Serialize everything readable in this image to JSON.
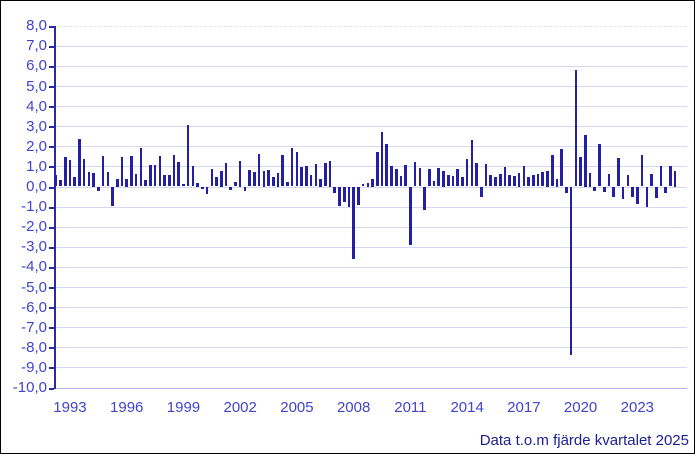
{
  "caption": "Data t.o.m fjärde kvartalet 2025",
  "colors": {
    "bar": "#2420a6",
    "axis": "#2a2aa8",
    "tick_label": "#4343cb",
    "gridline": "#d7d7f2",
    "caption": "#1d1d96",
    "background": "#ffffff"
  },
  "chart_data": {
    "type": "bar",
    "title": "",
    "xlabel": "",
    "ylabel": "",
    "x_start": "1993 Q1",
    "x_end": "2025 Q4",
    "frequency": "quarterly",
    "ylim": [
      -10,
      8
    ],
    "grid": true,
    "y_ticks": [
      {
        "value": 8,
        "label": "8,0"
      },
      {
        "value": 7,
        "label": "7,0"
      },
      {
        "value": 6,
        "label": "6,0"
      },
      {
        "value": 5,
        "label": "5,0"
      },
      {
        "value": 4,
        "label": "4,0"
      },
      {
        "value": 3,
        "label": "3,0"
      },
      {
        "value": 2,
        "label": "2,0"
      },
      {
        "value": 1,
        "label": "1,0"
      },
      {
        "value": 0,
        "label": "0,0"
      },
      {
        "value": -1,
        "label": "-1,0"
      },
      {
        "value": -2,
        "label": "-2,0"
      },
      {
        "value": -3,
        "label": "-3,0"
      },
      {
        "value": -4,
        "label": "-4,0"
      },
      {
        "value": -5,
        "label": "-5,0"
      },
      {
        "value": -6,
        "label": "-6,0"
      },
      {
        "value": -7,
        "label": "-7,0"
      },
      {
        "value": -8,
        "label": "-8,0"
      },
      {
        "value": -9,
        "label": "-9,0"
      },
      {
        "value": -10,
        "label": "-10,0"
      }
    ],
    "x_tick_years": [
      "1993",
      "1996",
      "1999",
      "2002",
      "2005",
      "2008",
      "2011",
      "2014",
      "2017",
      "2020",
      "2023"
    ],
    "values": [
      0.55,
      0.3,
      1.45,
      1.3,
      0.45,
      2.35,
      1.35,
      0.7,
      0.65,
      -0.2,
      1.5,
      0.7,
      -0.95,
      0.35,
      1.45,
      0.35,
      1.5,
      0.6,
      1.9,
      0.3,
      1.05,
      1.05,
      1.5,
      0.55,
      0.55,
      1.55,
      1.2,
      0.1,
      3.05,
      1.0,
      0.15,
      -0.1,
      -0.35,
      0.85,
      0.45,
      0.75,
      1.15,
      -0.15,
      0.2,
      1.25,
      -0.2,
      0.8,
      0.7,
      1.6,
      0.75,
      0.8,
      0.45,
      0.65,
      1.55,
      0.2,
      1.9,
      1.7,
      0.95,
      1.0,
      0.55,
      1.1,
      0.35,
      1.15,
      1.25,
      -0.3,
      -0.95,
      -0.75,
      -1.0,
      -3.6,
      -0.9,
      0.1,
      0.15,
      0.35,
      1.7,
      2.7,
      2.1,
      1.0,
      0.85,
      0.5,
      1.05,
      -2.9,
      1.2,
      0.9,
      -1.15,
      0.85,
      0.25,
      0.9,
      0.75,
      0.55,
      0.5,
      0.85,
      0.45,
      1.35,
      2.3,
      1.15,
      -0.5,
      1.1,
      0.55,
      0.45,
      0.6,
      0.95,
      0.55,
      0.5,
      0.65,
      1.0,
      0.45,
      0.55,
      0.6,
      0.7,
      0.75,
      1.55,
      0.35,
      1.85,
      -0.3,
      -8.4,
      5.8,
      1.45,
      2.55,
      0.65,
      -0.2,
      2.1,
      -0.25,
      0.6,
      -0.5,
      1.4,
      -0.6,
      0.55,
      -0.5,
      -0.85,
      1.55,
      -1.0,
      0.6,
      -0.55,
      1.0,
      -0.3,
      1.0,
      0.75
    ]
  }
}
